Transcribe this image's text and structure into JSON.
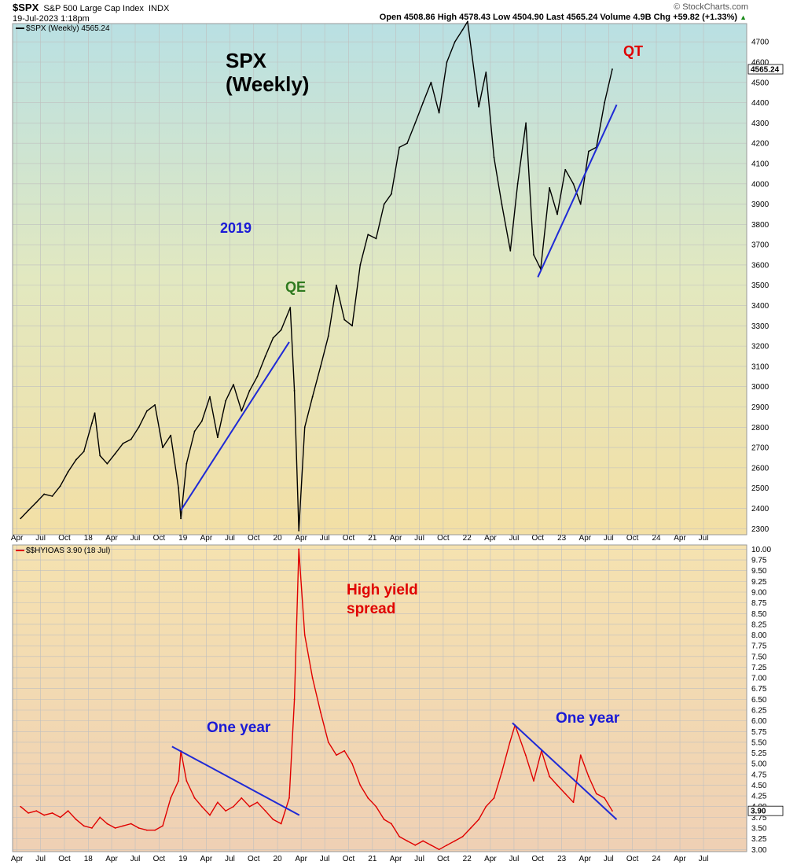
{
  "header": {
    "symbol": "$SPX",
    "description": "S&P 500 Large Cap Index",
    "exchange": "INDX",
    "date": "19-Jul-2023 1:18pm",
    "watermark": "© StockCharts.com",
    "stats": "Open 4508.86  High 4578.43  Low 4504.90  Last 4565.24  Volume 4.9B  Chg +59.82 (+1.33%)",
    "stats_arrow": "▲"
  },
  "colors": {
    "spx_line": "#000000",
    "hy_line": "#e00000",
    "trendline": "#1f2ad6",
    "qe_text": "#2f7a1f",
    "qt_text": "#e00000",
    "blue_text": "#1a1ad6",
    "red_text": "#e00000"
  },
  "x_axis_ticks": [
    "Apr",
    "Jul",
    "Oct",
    "18",
    "Apr",
    "Jul",
    "Oct",
    "19",
    "Apr",
    "Jul",
    "Oct",
    "20",
    "Apr",
    "Jul",
    "Oct",
    "21",
    "Apr",
    "Jul",
    "Oct",
    "22",
    "Apr",
    "Jul",
    "Oct",
    "23",
    "Apr",
    "Jul",
    "Oct",
    "24",
    "Apr",
    "Jul"
  ],
  "annotations": {
    "spx_title_1": "SPX",
    "spx_title_2": "(Weekly)",
    "year_2019": "2019",
    "qe": "QE",
    "qt": "QT",
    "hy_title_1": "High yield",
    "hy_title_2": "spread",
    "one_year_left": "One year",
    "one_year_right": "One year"
  },
  "chart_data": [
    {
      "type": "line",
      "legend": "$SPX (Weekly) 4565.24",
      "last_value_label": "4565.24",
      "y_ticks": [
        "2300",
        "2400",
        "2500",
        "2600",
        "2700",
        "2800",
        "2900",
        "3000",
        "3100",
        "3200",
        "3300",
        "3400",
        "3500",
        "3600",
        "3700",
        "3800",
        "3900",
        "4000",
        "4100",
        "4200",
        "4300",
        "4400",
        "4500",
        "4600",
        "4700"
      ],
      "ylim": [
        2270,
        4790
      ],
      "grid": true,
      "series": [
        {
          "x": [
            "2017-04",
            "2017-05",
            "2017-06",
            "2017-07",
            "2017-08",
            "2017-09",
            "2017-10",
            "2017-11",
            "2017-12",
            "2018-01",
            "2018-01-26",
            "2018-02",
            "2018-03",
            "2018-04",
            "2018-05",
            "2018-06",
            "2018-07",
            "2018-08",
            "2018-09",
            "2018-10",
            "2018-11",
            "2018-12",
            "2018-12-24",
            "2019-01",
            "2019-02",
            "2019-03",
            "2019-04",
            "2019-05",
            "2019-06",
            "2019-07",
            "2019-08",
            "2019-09",
            "2019-10",
            "2019-11",
            "2019-12",
            "2020-01",
            "2020-02-19",
            "2020-03-06",
            "2020-03-23",
            "2020-04",
            "2020-05",
            "2020-06",
            "2020-07",
            "2020-08",
            "2020-09",
            "2020-10",
            "2020-11",
            "2020-12",
            "2021-01",
            "2021-02",
            "2021-03",
            "2021-04",
            "2021-05",
            "2021-06",
            "2021-07",
            "2021-08",
            "2021-09",
            "2021-10",
            "2021-11",
            "2021-12",
            "2022-01-03",
            "2022-02",
            "2022-03",
            "2022-04",
            "2022-05",
            "2022-06-17",
            "2022-07",
            "2022-08-16",
            "2022-09",
            "2022-10-12",
            "2022-11",
            "2022-12",
            "2023-01",
            "2023-02",
            "2023-03",
            "2023-04",
            "2023-05",
            "2023-06",
            "2023-07"
          ],
          "values": [
            2350,
            2390,
            2430,
            2470,
            2460,
            2510,
            2580,
            2640,
            2680,
            2820,
            2870,
            2660,
            2620,
            2670,
            2720,
            2740,
            2800,
            2880,
            2910,
            2700,
            2760,
            2500,
            2350,
            2620,
            2780,
            2830,
            2950,
            2750,
            2930,
            3010,
            2880,
            2980,
            3050,
            3150,
            3240,
            3280,
            3390,
            2980,
            2290,
            2800,
            2950,
            3100,
            3250,
            3500,
            3330,
            3300,
            3600,
            3750,
            3730,
            3900,
            3950,
            4180,
            4200,
            4300,
            4400,
            4500,
            4350,
            4600,
            4700,
            4760,
            4800,
            4380,
            4550,
            4130,
            3900,
            3670,
            4000,
            4300,
            3650,
            3580,
            3980,
            3850,
            4070,
            4000,
            3900,
            4160,
            4180,
            4400,
            4565
          ]
        }
      ]
    },
    {
      "type": "line",
      "legend": "$$HYIOAS 3.90 (18 Jul)",
      "last_value_label": "3.90",
      "y_ticks": [
        "3.00",
        "3.25",
        "3.50",
        "3.75",
        "4.00",
        "4.25",
        "4.50",
        "4.75",
        "5.00",
        "5.25",
        "5.50",
        "5.75",
        "6.00",
        "6.25",
        "6.50",
        "6.75",
        "7.00",
        "7.25",
        "7.50",
        "7.75",
        "8.00",
        "8.25",
        "8.50",
        "8.75",
        "9.00",
        "9.25",
        "9.50",
        "9.75",
        "10.00"
      ],
      "ylim": [
        2.95,
        10.1
      ],
      "grid": true,
      "series": [
        {
          "x": [
            "2017-04",
            "2017-05",
            "2017-06",
            "2017-07",
            "2017-08",
            "2017-09",
            "2017-10",
            "2017-11",
            "2017-12",
            "2018-01",
            "2018-02",
            "2018-03",
            "2018-04",
            "2018-05",
            "2018-06",
            "2018-07",
            "2018-08",
            "2018-09",
            "2018-10",
            "2018-11",
            "2018-12",
            "2018-12-24",
            "2019-01",
            "2019-02",
            "2019-03",
            "2019-04",
            "2019-05",
            "2019-06",
            "2019-07",
            "2019-08",
            "2019-09",
            "2019-10",
            "2019-11",
            "2019-12",
            "2020-01",
            "2020-02",
            "2020-03-06",
            "2020-03-23",
            "2020-04",
            "2020-05",
            "2020-06",
            "2020-07",
            "2020-08",
            "2020-09",
            "2020-10",
            "2020-11",
            "2020-12",
            "2021-01",
            "2021-02",
            "2021-03",
            "2021-04",
            "2021-05",
            "2021-06",
            "2021-07",
            "2021-08",
            "2021-09",
            "2021-10",
            "2021-11",
            "2021-12",
            "2022-01",
            "2022-02",
            "2022-03",
            "2022-04",
            "2022-05",
            "2022-06",
            "2022-07-05",
            "2022-08",
            "2022-09",
            "2022-10",
            "2022-11",
            "2022-12",
            "2023-01",
            "2023-02",
            "2023-03",
            "2023-04",
            "2023-05",
            "2023-06",
            "2023-07"
          ],
          "values": [
            4.0,
            3.85,
            3.9,
            3.8,
            3.85,
            3.75,
            3.9,
            3.7,
            3.55,
            3.5,
            3.75,
            3.6,
            3.5,
            3.55,
            3.6,
            3.5,
            3.45,
            3.45,
            3.55,
            4.2,
            4.6,
            5.3,
            4.6,
            4.2,
            4.0,
            3.8,
            4.1,
            3.9,
            4.0,
            4.2,
            4.0,
            4.1,
            3.9,
            3.7,
            3.6,
            4.2,
            6.5,
            10.0,
            8.0,
            7.0,
            6.2,
            5.5,
            5.2,
            5.3,
            5.0,
            4.5,
            4.2,
            4.0,
            3.7,
            3.6,
            3.3,
            3.2,
            3.1,
            3.2,
            3.1,
            3.0,
            3.1,
            3.2,
            3.3,
            3.5,
            3.7,
            4.0,
            4.2,
            4.8,
            5.5,
            5.9,
            5.2,
            4.6,
            5.3,
            4.7,
            4.5,
            4.3,
            4.1,
            5.2,
            4.7,
            4.3,
            4.2,
            3.9
          ]
        }
      ]
    }
  ]
}
